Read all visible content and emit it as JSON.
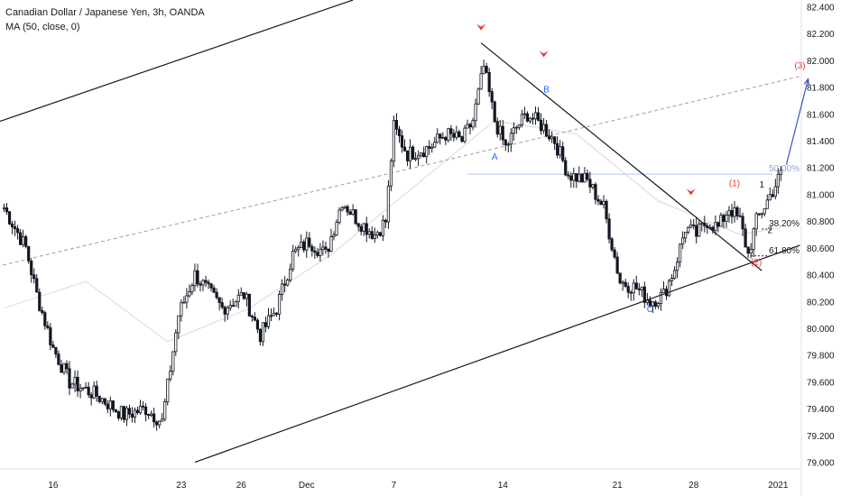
{
  "legend": {
    "symbol": "Canadian Dollar / Japanese Yen, 3h, OANDA",
    "indicator": "MA (50, close, 0)"
  },
  "chart_data": {
    "type": "candlestick",
    "y_ticks": [
      "82.400",
      "82.200",
      "82.000",
      "81.800",
      "81.600",
      "81.400",
      "81.200",
      "81.000",
      "80.800",
      "80.600",
      "80.400",
      "80.200",
      "80.000",
      "79.800",
      "79.600",
      "79.400",
      "79.200",
      "79.000"
    ],
    "y_range": [
      78.95,
      82.45
    ],
    "x_ticks": [
      "16",
      "23",
      "26",
      "Dec",
      "7",
      "14",
      "21",
      "28",
      "2021"
    ],
    "waypoints": [
      [
        0,
        80.9
      ],
      [
        8,
        80.6
      ],
      [
        12,
        80.25
      ],
      [
        18,
        79.85
      ],
      [
        24,
        79.6
      ],
      [
        34,
        79.5
      ],
      [
        44,
        79.35
      ],
      [
        52,
        79.4
      ],
      [
        58,
        79.3
      ],
      [
        64,
        80.1
      ],
      [
        70,
        80.4
      ],
      [
        80,
        80.15
      ],
      [
        88,
        80.25
      ],
      [
        94,
        79.95
      ],
      [
        100,
        80.15
      ],
      [
        106,
        80.55
      ],
      [
        112,
        80.65
      ],
      [
        118,
        80.55
      ],
      [
        124,
        80.95
      ],
      [
        130,
        80.8
      ],
      [
        136,
        80.7
      ],
      [
        140,
        80.8
      ],
      [
        143,
        81.5
      ],
      [
        148,
        81.3
      ],
      [
        156,
        81.35
      ],
      [
        162,
        81.45
      ],
      [
        168,
        81.4
      ],
      [
        172,
        81.55
      ],
      [
        176,
        81.95
      ],
      [
        180,
        81.55
      ],
      [
        184,
        81.35
      ],
      [
        188,
        81.5
      ],
      [
        192,
        81.6
      ],
      [
        198,
        81.5
      ],
      [
        202,
        81.4
      ],
      [
        207,
        81.15
      ],
      [
        214,
        81.1
      ],
      [
        220,
        80.9
      ],
      [
        226,
        80.35
      ],
      [
        232,
        80.3
      ],
      [
        237,
        80.2
      ],
      [
        242,
        80.25
      ],
      [
        246,
        80.45
      ],
      [
        250,
        80.75
      ],
      [
        254,
        80.7
      ],
      [
        258,
        80.8
      ],
      [
        262,
        80.75
      ],
      [
        266,
        80.9
      ],
      [
        270,
        80.8
      ],
      [
        273,
        80.55
      ],
      [
        276,
        80.8
      ],
      [
        280,
        80.95
      ],
      [
        285,
        81.15
      ]
    ],
    "moving_average": {
      "label": "MA (50, close, 0)",
      "points": [
        [
          0,
          80.15
        ],
        [
          30,
          80.35
        ],
        [
          60,
          79.9
        ],
        [
          90,
          80.15
        ],
        [
          120,
          80.55
        ],
        [
          150,
          81.05
        ],
        [
          180,
          81.55
        ],
        [
          210,
          81.45
        ],
        [
          240,
          80.95
        ],
        [
          270,
          80.7
        ],
        [
          285,
          80.75
        ]
      ]
    },
    "channel_lines": [
      {
        "name": "upper-channel",
        "from": [
          -5,
          81.52
        ],
        "to": [
          128,
          82.45
        ]
      },
      {
        "name": "lower-channel",
        "from": [
          70,
          79.0
        ],
        "to": [
          292,
          80.62
        ]
      },
      {
        "name": "downtrend",
        "from": [
          175,
          82.13
        ],
        "to": [
          278,
          80.43
        ]
      }
    ],
    "midline": {
      "from": [
        -5,
        80.45
      ],
      "to": [
        292,
        81.88
      ]
    },
    "wave_labels": [
      {
        "text": "A",
        "x": 180,
        "y": 81.26,
        "color": "#2962ff"
      },
      {
        "text": "B",
        "x": 199,
        "y": 81.76,
        "color": "#2962ff"
      },
      {
        "text": "C",
        "x": 237,
        "y": 80.12,
        "color": "#2962ff"
      },
      {
        "text": "(1)",
        "x": 268,
        "y": 81.06,
        "color": "#e53935"
      },
      {
        "text": "(2)",
        "x": 276,
        "y": 80.47,
        "color": "#e53935"
      },
      {
        "text": "(3)",
        "x": 292,
        "y": 81.94,
        "color": "#e53935"
      },
      {
        "text": "1",
        "x": 278,
        "y": 81.05,
        "color": "#131722"
      },
      {
        "text": "2",
        "x": 281,
        "y": 80.71,
        "color": "#131722"
      }
    ],
    "reversal_markers": [
      [
        175,
        82.23
      ],
      [
        198,
        82.03
      ],
      [
        252,
        81.0
      ]
    ],
    "fibonacci": [
      {
        "label": "50.00%",
        "value": 81.15,
        "color": "#b2c8e6",
        "from": 170
      },
      {
        "label": "38.20%",
        "value": 80.74,
        "color": "#131722",
        "from": 278
      },
      {
        "label": "61.80%",
        "value": 80.54,
        "color": "#131722",
        "from": 274
      }
    ],
    "projection": {
      "from": [
        287,
        81.22
      ],
      "to": [
        295,
        81.86
      ],
      "color": "#3f51b5"
    }
  }
}
